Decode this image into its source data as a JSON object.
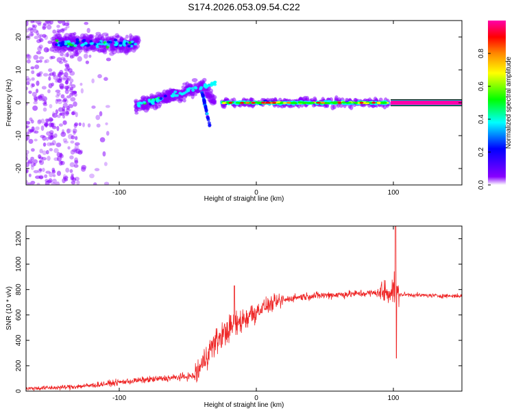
{
  "title": "S174.2026.053.09.54.C22",
  "colors": {
    "snr_line": "#ee2222",
    "axis": "#000000",
    "background": "#ffffff"
  },
  "chart_data": [
    {
      "type": "heatmap",
      "xlabel": "Height of straight line (km)",
      "ylabel": "Frequency (Hz)",
      "xlim": [
        -168,
        150
      ],
      "ylim": [
        -25,
        25
      ],
      "xticks": [
        -100,
        0,
        100
      ],
      "yticks": [
        -20,
        -10,
        0,
        10,
        20
      ],
      "colorbar": {
        "label": "Normalized spectral amplitude",
        "range": [
          0,
          1
        ],
        "ticks": [
          "0.0",
          "0.2",
          "0.4",
          "0.6",
          "0.8"
        ],
        "tick_values": [
          0.0,
          0.2,
          0.4,
          0.6,
          0.8
        ],
        "colormap": [
          "#ffffff",
          "#8800ff",
          "#0000ff",
          "#00ffff",
          "#00ff00",
          "#ffff00",
          "#ff8800",
          "#ff0000",
          "#ff00aa"
        ]
      },
      "regions": [
        {
          "name": "noise scatter",
          "x": [
            -168,
            -130
          ],
          "freq": [
            -25,
            25
          ],
          "amplitude": 0.1
        },
        {
          "name": "upper band",
          "x": [
            -168,
            -86
          ],
          "freq": [
            14,
            22
          ],
          "amplitude": 0.3
        },
        {
          "name": "rising track",
          "x": [
            -88,
            -30
          ],
          "freq": [
            -3,
            8
          ],
          "amplitude": 0.3
        },
        {
          "name": "main line",
          "x": [
            -25,
            97
          ],
          "freq": [
            -0.5,
            0.5
          ],
          "amplitude": 0.6
        },
        {
          "name": "steady line",
          "x": [
            98,
            150
          ],
          "freq": [
            0,
            0
          ],
          "amplitude": 1.0
        }
      ]
    },
    {
      "type": "line",
      "xlabel": "Height of straight line (km)",
      "ylabel": "SNR (10 * v/v)",
      "xlim": [
        -168,
        150
      ],
      "ylim": [
        0,
        1300
      ],
      "xticks": [
        -100,
        0,
        100
      ],
      "yticks": [
        0,
        200,
        400,
        600,
        800,
        1000,
        1200
      ],
      "series": [
        {
          "name": "SNR",
          "x": [
            -168,
            -140,
            -120,
            -100,
            -80,
            -60,
            -45,
            -40,
            -35,
            -30,
            -25,
            -20,
            -15,
            -10,
            -5,
            0,
            5,
            10,
            15,
            20,
            25,
            30,
            40,
            50,
            60,
            70,
            80,
            90,
            95,
            98,
            100,
            101,
            102,
            105,
            110,
            120,
            130,
            140,
            150
          ],
          "values": [
            20,
            30,
            45,
            70,
            90,
            105,
            120,
            200,
            310,
            380,
            440,
            490,
            520,
            560,
            600,
            630,
            660,
            680,
            700,
            715,
            730,
            740,
            750,
            755,
            760,
            765,
            770,
            775,
            780,
            790,
            800,
            780,
            760,
            760,
            760,
            755,
            752,
            750,
            750
          ]
        }
      ]
    }
  ]
}
